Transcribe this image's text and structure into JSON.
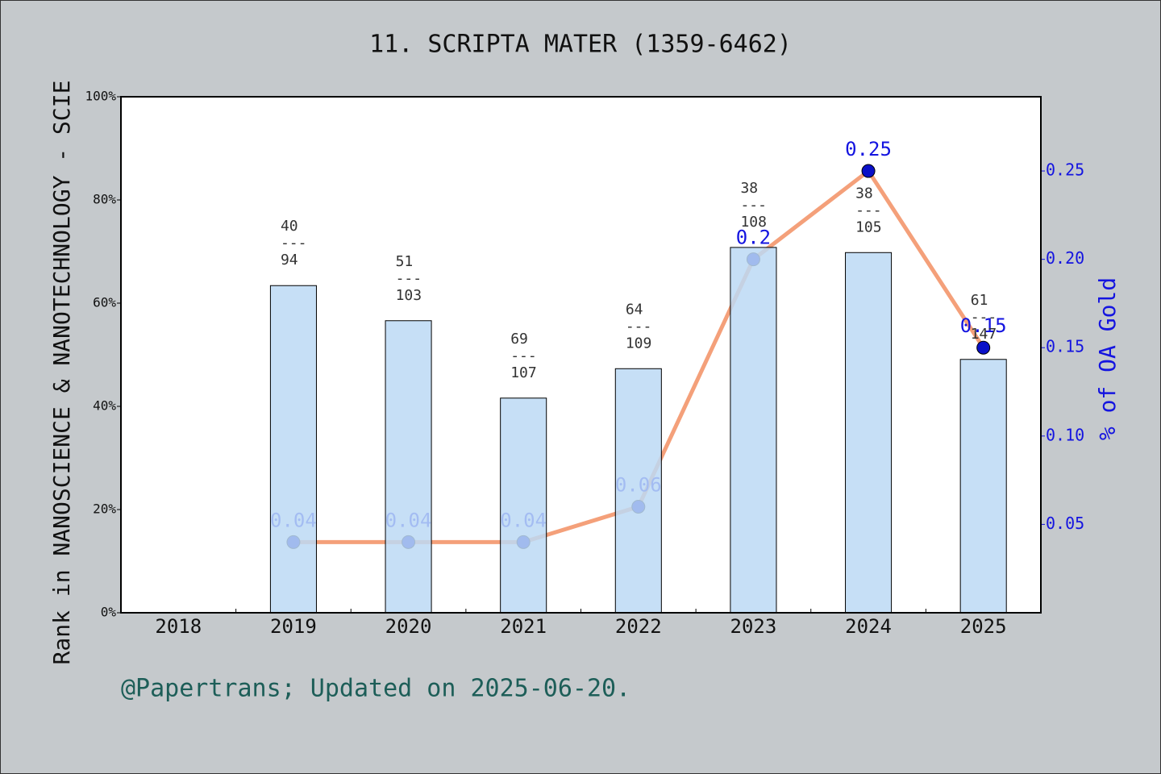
{
  "chart_data": {
    "type": "bar-line",
    "title": "11. SCRIPTA MATER (1359-6462)",
    "y_label": "Rank in NANOSCIENCE & NANOTECHNOLOGY - SCIE",
    "y2_label": "% of OA Gold",
    "categories": [
      "2018",
      "2019",
      "2020",
      "2021",
      "2022",
      "2023",
      "2024",
      "2025"
    ],
    "bars": {
      "values": [
        null,
        63.4,
        56.6,
        41.6,
        47.3,
        70.8,
        69.8,
        49.1
      ],
      "color": "#bcd9f5",
      "annotations": [
        null,
        [
          "40",
          "---",
          "94"
        ],
        [
          "51",
          "---",
          "103"
        ],
        [
          "69",
          "---",
          "107"
        ],
        [
          "64",
          "---",
          "109"
        ],
        [
          "38",
          "---",
          "108"
        ],
        [
          "38",
          "---",
          "105"
        ],
        [
          "61",
          "---",
          "147"
        ]
      ]
    },
    "line": {
      "axis": "y2",
      "values": [
        null,
        0.04,
        0.04,
        0.04,
        0.06,
        0.2,
        0.25,
        0.15
      ],
      "color": "#f4a07a",
      "marker_color": "#0a10c8",
      "label_color": "#1414e0"
    },
    "ylim": [
      0,
      100
    ],
    "yticks": [
      {
        "value": 0,
        "label": "0%"
      },
      {
        "value": 20,
        "label": "20%"
      },
      {
        "value": 40,
        "label": "40%"
      },
      {
        "value": 60,
        "label": "60%"
      },
      {
        "value": 80,
        "label": "80%"
      },
      {
        "value": 100,
        "label": "100%"
      }
    ],
    "y2lim": [
      0,
      0.292
    ],
    "y2ticks": [
      0.05,
      {
        "value": 0.1,
        "label": "0.10"
      },
      0.15,
      {
        "value": 0.2,
        "label": "0.20"
      },
      0.25
    ]
  },
  "footer": "@Papertrans; Updated on 2025-06-20."
}
